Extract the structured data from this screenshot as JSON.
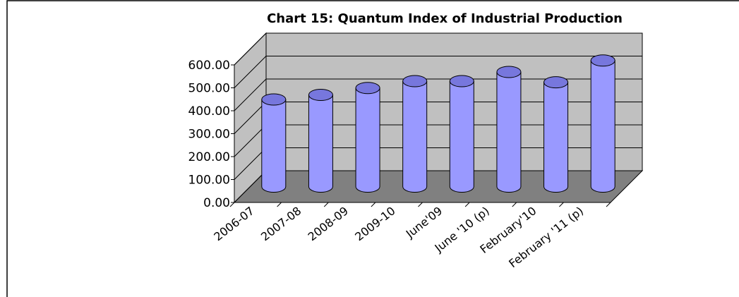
{
  "chart_data": {
    "type": "bar3d",
    "title": "Chart 15: Quantum Index of Industrial Production",
    "categories": [
      "2006-07",
      "2007-08",
      "2008-09",
      "2009-10",
      "June'09",
      "June '10 (p)",
      "February'10",
      "February '11 (p)"
    ],
    "values": [
      380,
      400,
      430,
      460,
      460,
      500,
      455,
      550
    ],
    "color": "#9999ff",
    "ylim": [
      0,
      600
    ],
    "yticks": [
      {
        "value": 0,
        "label": "0.00"
      },
      {
        "value": 100,
        "label": "100.00"
      },
      {
        "value": 200,
        "label": "200.00"
      },
      {
        "value": 300,
        "label": "300.00"
      },
      {
        "value": 400,
        "label": "400.00"
      },
      {
        "value": 500,
        "label": "500.00"
      },
      {
        "value": 600,
        "label": "600.00"
      }
    ],
    "grid": true
  }
}
